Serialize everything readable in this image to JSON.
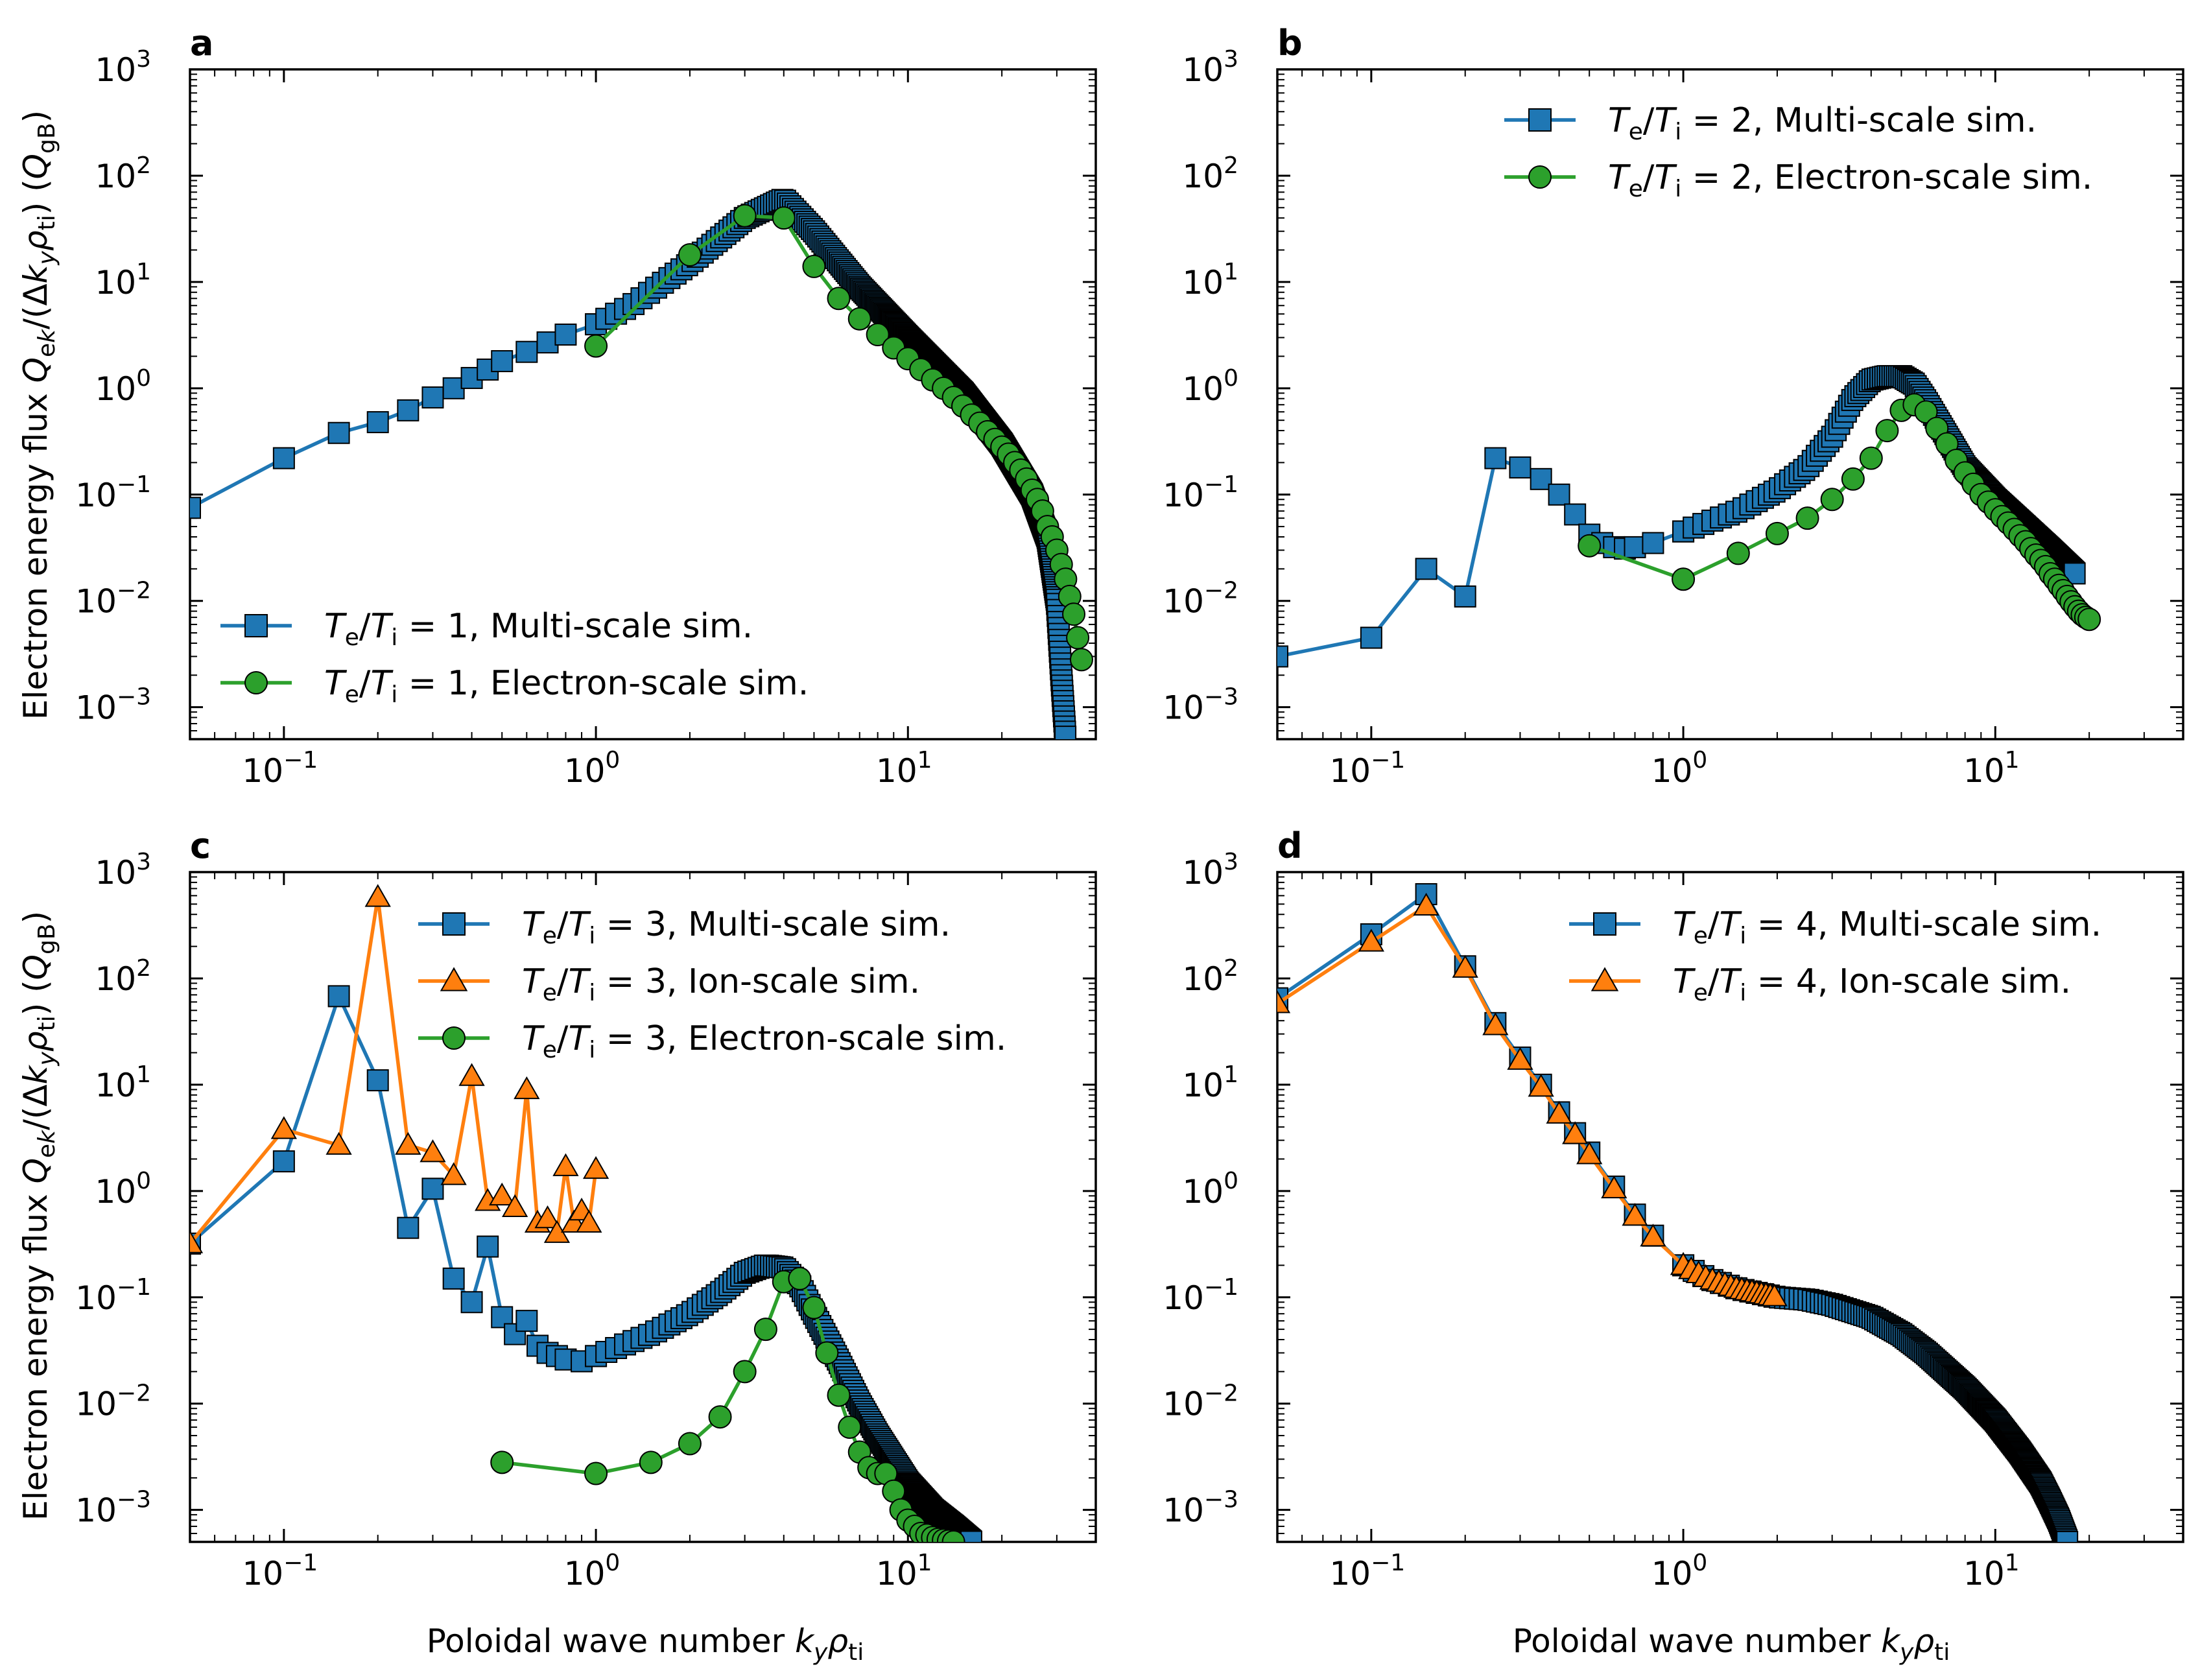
{
  "figure": {
    "ylabel": "Electron energy flux Q_ek/(Δk_yρ_ti) (Q_gB)",
    "xlabel": "Poloidal wave number k_yρ_ti"
  },
  "colors": {
    "multi": "#1f77b4",
    "ion": "#ff7f0e",
    "electron": "#2ca02c"
  },
  "chart_data": [
    {
      "type": "line",
      "panel": "a",
      "xscale": "log",
      "yscale": "log",
      "xlim": [
        0.05,
        40
      ],
      "ylim": [
        0.0005,
        1000
      ],
      "x_ticks": [
        "10^-1",
        "10^0",
        "10^1"
      ],
      "y_ticks": [
        "10^-3",
        "10^-2",
        "10^-1",
        "10^0",
        "10^1",
        "10^2",
        "10^3"
      ],
      "legend": "lower-left",
      "series": [
        {
          "name": "T_e/T_i = 1, Multi-scale sim.",
          "ratio": "1",
          "sim": "Multi-scale sim.",
          "kind": "multi",
          "marker": "square",
          "dense": true,
          "x": [
            0.05,
            0.1,
            0.15,
            0.2,
            0.25,
            0.3,
            0.35,
            0.4,
            0.45,
            0.5,
            0.6,
            0.7,
            0.8,
            1.0,
            1.3,
            2.0,
            3.0,
            4.0,
            5.0,
            7.0,
            10.0,
            15.0,
            20.0,
            25.0,
            28.0,
            30.0,
            31.0,
            32.0
          ],
          "y": [
            0.075,
            0.22,
            0.38,
            0.48,
            0.62,
            0.82,
            1.0,
            1.25,
            1.5,
            1.8,
            2.2,
            2.7,
            3.2,
            4.0,
            6.0,
            15.0,
            40.0,
            60.0,
            30.0,
            9.0,
            3.0,
            0.9,
            0.3,
            0.1,
            0.04,
            0.01,
            0.002,
            0.0005
          ]
        },
        {
          "name": "T_e/T_i = 1, Electron-scale sim.",
          "ratio": "1",
          "sim": "Electron-scale sim.",
          "kind": "electron",
          "marker": "circle",
          "dense": false,
          "x": [
            1.0,
            2.0,
            3.0,
            4.0,
            5.0,
            6.0,
            7.0,
            8.0,
            9.0,
            10.0,
            11.0,
            12.0,
            13.0,
            14.0,
            15.0,
            16.0,
            17.0,
            18.0,
            19.0,
            20.0,
            21.0,
            22.0,
            23.0,
            24.0,
            25.0,
            26.0,
            27.0,
            28.0,
            29.0,
            30.0,
            31.0,
            32.0,
            33.0,
            34.0,
            35.0,
            36.0
          ],
          "y": [
            2.5,
            18.0,
            42.0,
            40.0,
            14.0,
            7.0,
            4.5,
            3.2,
            2.4,
            1.9,
            1.5,
            1.2,
            1.0,
            0.82,
            0.68,
            0.56,
            0.47,
            0.39,
            0.33,
            0.28,
            0.24,
            0.2,
            0.17,
            0.14,
            0.11,
            0.09,
            0.07,
            0.05,
            0.04,
            0.03,
            0.022,
            0.016,
            0.011,
            0.0075,
            0.0045,
            0.0028
          ]
        }
      ]
    },
    {
      "type": "line",
      "panel": "b",
      "xscale": "log",
      "yscale": "log",
      "xlim": [
        0.05,
        40
      ],
      "ylim": [
        0.0005,
        1000
      ],
      "x_ticks": [
        "10^-1",
        "10^0",
        "10^1"
      ],
      "y_ticks": [
        "10^-3",
        "10^-2",
        "10^-1",
        "10^0",
        "10^1",
        "10^2",
        "10^3"
      ],
      "legend": "upper-right",
      "series": [
        {
          "name": "T_e/T_i = 2, Multi-scale sim.",
          "ratio": "2",
          "sim": "Multi-scale sim.",
          "kind": "multi",
          "marker": "square",
          "dense": true,
          "x": [
            0.05,
            0.1,
            0.15,
            0.2,
            0.25,
            0.3,
            0.35,
            0.4,
            0.45,
            0.5,
            0.55,
            0.6,
            0.65,
            0.7,
            0.8,
            1.0,
            1.5,
            2.0,
            2.5,
            3.0,
            3.5,
            4.0,
            4.5,
            5.0,
            5.5,
            6.0,
            7.0,
            8.0,
            10.0,
            12.0,
            15.0,
            18.0
          ],
          "y": [
            0.003,
            0.0045,
            0.02,
            0.011,
            0.22,
            0.18,
            0.14,
            0.1,
            0.065,
            0.042,
            0.035,
            0.032,
            0.031,
            0.032,
            0.035,
            0.045,
            0.07,
            0.11,
            0.18,
            0.35,
            0.8,
            1.2,
            1.3,
            1.3,
            1.1,
            0.75,
            0.35,
            0.18,
            0.09,
            0.055,
            0.03,
            0.018
          ]
        },
        {
          "name": "T_e/T_i = 2, Electron-scale sim.",
          "ratio": "2",
          "sim": "Electron-scale sim.",
          "kind": "electron",
          "marker": "circle",
          "dense": false,
          "x": [
            0.5,
            1.0,
            1.5,
            2.0,
            2.5,
            3.0,
            3.5,
            4.0,
            4.5,
            5.0,
            5.5,
            6.0,
            6.5,
            7.0,
            7.5,
            8.0,
            8.5,
            9.0,
            9.5,
            10.0,
            10.5,
            11.0,
            11.5,
            12.0,
            12.5,
            13.0,
            13.5,
            14.0,
            14.5,
            15.0,
            15.5,
            16.0,
            16.5,
            17.0,
            17.5,
            18.0,
            18.5,
            19.0,
            19.5,
            20.0
          ],
          "y": [
            0.033,
            0.016,
            0.028,
            0.043,
            0.06,
            0.09,
            0.14,
            0.22,
            0.4,
            0.62,
            0.7,
            0.6,
            0.42,
            0.3,
            0.21,
            0.16,
            0.125,
            0.1,
            0.085,
            0.072,
            0.062,
            0.054,
            0.047,
            0.041,
            0.036,
            0.031,
            0.027,
            0.024,
            0.021,
            0.018,
            0.016,
            0.014,
            0.0125,
            0.011,
            0.0098,
            0.0088,
            0.008,
            0.0074,
            0.007,
            0.0067
          ]
        }
      ]
    },
    {
      "type": "line",
      "panel": "c",
      "xscale": "log",
      "yscale": "log",
      "xlim": [
        0.05,
        40
      ],
      "ylim": [
        0.0005,
        1000
      ],
      "x_ticks": [
        "10^-1",
        "10^0",
        "10^1"
      ],
      "y_ticks": [
        "10^-3",
        "10^-2",
        "10^-1",
        "10^0",
        "10^1",
        "10^2",
        "10^3"
      ],
      "legend": "upper-right",
      "series": [
        {
          "name": "T_e/T_i = 3, Multi-scale sim.",
          "ratio": "3",
          "sim": "Multi-scale sim.",
          "kind": "multi",
          "marker": "square",
          "dense": true,
          "x": [
            0.05,
            0.1,
            0.15,
            0.2,
            0.25,
            0.3,
            0.35,
            0.4,
            0.45,
            0.5,
            0.55,
            0.6,
            0.65,
            0.7,
            0.75,
            0.8,
            0.9,
            1.0,
            1.5,
            2.0,
            2.5,
            3.0,
            3.5,
            4.0,
            4.5,
            5.0,
            6.0,
            7.0,
            8.0,
            10.0,
            12.0,
            14.0,
            16.0
          ],
          "y": [
            0.32,
            1.9,
            68.0,
            11.0,
            0.45,
            1.05,
            0.15,
            0.09,
            0.3,
            0.065,
            0.045,
            0.06,
            0.035,
            0.03,
            0.028,
            0.026,
            0.025,
            0.028,
            0.045,
            0.07,
            0.11,
            0.17,
            0.2,
            0.19,
            0.13,
            0.07,
            0.025,
            0.01,
            0.005,
            0.0018,
            0.001,
            0.0007,
            0.0005
          ]
        },
        {
          "name": "T_e/T_i = 3, Ion-scale sim.",
          "ratio": "3",
          "sim": "Ion-scale sim.",
          "kind": "ion",
          "marker": "triangle",
          "dense": false,
          "x": [
            0.05,
            0.1,
            0.15,
            0.2,
            0.25,
            0.3,
            0.35,
            0.4,
            0.45,
            0.5,
            0.55,
            0.6,
            0.65,
            0.7,
            0.75,
            0.8,
            0.85,
            0.9,
            0.95,
            1.0
          ],
          "y": [
            0.32,
            3.8,
            2.7,
            580.0,
            2.7,
            2.3,
            1.4,
            12.0,
            0.8,
            0.9,
            0.7,
            9.0,
            0.5,
            0.55,
            0.4,
            1.7,
            0.5,
            0.65,
            0.5,
            1.6
          ]
        },
        {
          "name": "T_e/T_i = 3, Electron-scale sim.",
          "ratio": "3",
          "sim": "Electron-scale sim.",
          "kind": "electron",
          "marker": "circle",
          "dense": false,
          "x": [
            0.5,
            1.0,
            1.5,
            2.0,
            2.5,
            3.0,
            3.5,
            4.0,
            4.5,
            5.0,
            5.5,
            6.0,
            6.5,
            7.0,
            7.5,
            8.0,
            8.5,
            9.0,
            9.5,
            10.0,
            10.5,
            11.0,
            11.5,
            12.0,
            12.5,
            13.0,
            13.5,
            14.0
          ],
          "y": [
            0.0028,
            0.0022,
            0.0028,
            0.0042,
            0.0075,
            0.02,
            0.05,
            0.14,
            0.15,
            0.08,
            0.03,
            0.012,
            0.006,
            0.0035,
            0.0025,
            0.0022,
            0.0022,
            0.0015,
            0.001,
            0.0008,
            0.0007,
            0.0006,
            0.00058,
            0.00055,
            0.00053,
            0.00052,
            0.00051,
            0.0005
          ]
        }
      ]
    },
    {
      "type": "line",
      "panel": "d",
      "xscale": "log",
      "yscale": "log",
      "xlim": [
        0.05,
        40
      ],
      "ylim": [
        0.0005,
        1000
      ],
      "x_ticks": [
        "10^-1",
        "10^0",
        "10^1"
      ],
      "y_ticks": [
        "10^-3",
        "10^-2",
        "10^-1",
        "10^0",
        "10^1",
        "10^2",
        "10^3"
      ],
      "legend": "upper-right",
      "series": [
        {
          "name": "T_e/T_i = 4, Multi-scale sim.",
          "ratio": "4",
          "sim": "Multi-scale sim.",
          "kind": "multi",
          "marker": "square",
          "dense": true,
          "x": [
            0.05,
            0.1,
            0.15,
            0.2,
            0.25,
            0.3,
            0.35,
            0.4,
            0.45,
            0.5,
            0.6,
            0.7,
            0.8,
            1.0,
            1.2,
            1.5,
            2.0,
            2.5,
            3.0,
            4.0,
            5.0,
            6.0,
            8.0,
            10.0,
            12.0,
            14.0,
            15.0,
            16.0,
            17.0
          ],
          "y": [
            65.0,
            260.0,
            620.0,
            130.0,
            38.0,
            18.0,
            10.0,
            5.5,
            3.5,
            2.3,
            1.1,
            0.6,
            0.38,
            0.2,
            0.15,
            0.12,
            0.1,
            0.095,
            0.085,
            0.065,
            0.045,
            0.03,
            0.014,
            0.007,
            0.0035,
            0.0018,
            0.0012,
            0.0008,
            0.0005
          ]
        },
        {
          "name": "T_e/T_i = 4, Ion-scale sim.",
          "ratio": "4",
          "sim": "Ion-scale sim.",
          "kind": "ion",
          "marker": "triangle",
          "dense": true,
          "x": [
            0.05,
            0.1,
            0.15,
            0.2,
            0.25,
            0.3,
            0.35,
            0.4,
            0.45,
            0.5,
            0.6,
            0.7,
            0.8,
            1.0,
            1.2,
            1.5,
            2.0
          ],
          "y": [
            58.0,
            220.0,
            480.0,
            125.0,
            36.0,
            17.0,
            9.5,
            5.3,
            3.4,
            2.2,
            1.05,
            0.58,
            0.37,
            0.2,
            0.15,
            0.12,
            0.1
          ]
        }
      ]
    }
  ]
}
